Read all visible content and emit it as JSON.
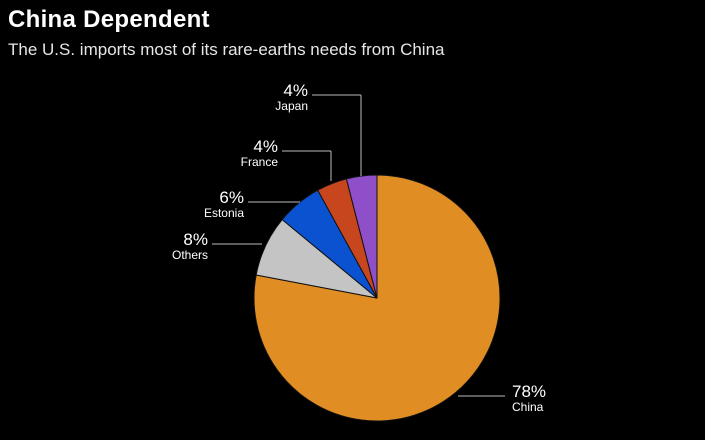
{
  "chart_data": {
    "type": "pie",
    "title": "China Dependent",
    "subtitle": "The U.S. imports most of its rare-earths needs from China",
    "slices": [
      {
        "label": "China",
        "value": 78,
        "value_label": "78%",
        "color": "#e08d24"
      },
      {
        "label": "Others",
        "value": 8,
        "value_label": "8%",
        "color": "#c4c4c4"
      },
      {
        "label": "Estonia",
        "value": 6,
        "value_label": "6%",
        "color": "#0a52d0"
      },
      {
        "label": "France",
        "value": 4,
        "value_label": "4%",
        "color": "#c8461e"
      },
      {
        "label": "Japan",
        "value": 4,
        "value_label": "4%",
        "color": "#8f4fc8"
      }
    ],
    "legend": "none"
  }
}
